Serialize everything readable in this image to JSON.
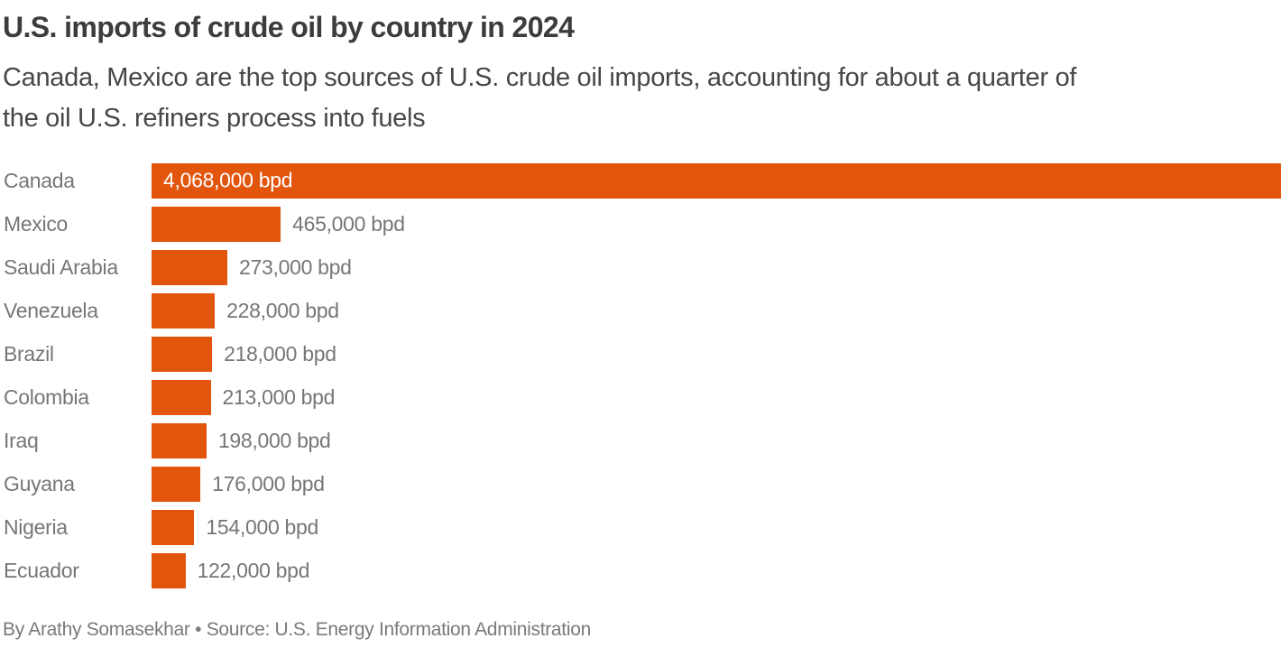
{
  "header": {
    "title": "U.S. imports of crude oil by country in 2024",
    "subtitle_lines": [
      "Canada, Mexico are the top sources of U.S. crude oil imports, accounting for about a quarter of",
      "the oil U.S. refiners process into fuels"
    ]
  },
  "chart_data": {
    "type": "bar",
    "orientation": "horizontal",
    "title": "U.S. imports of crude oil by country in 2024",
    "categories": [
      "Canada",
      "Mexico",
      "Saudi Arabia",
      "Venezuela",
      "Brazil",
      "Colombia",
      "Iraq",
      "Guyana",
      "Nigeria",
      "Ecuador"
    ],
    "values": [
      4068000,
      465000,
      273000,
      228000,
      218000,
      213000,
      198000,
      176000,
      154000,
      122000
    ],
    "value_labels": [
      "4,068,000 bpd",
      "465,000 bpd",
      "273,000 bpd",
      "228,000 bpd",
      "218,000 bpd",
      "213,000 bpd",
      "198,000 bpd",
      "176,000 bpd",
      "154,000 bpd",
      "122,000 bpd"
    ],
    "unit": "bpd",
    "xlim": [
      0,
      4068000
    ],
    "grid": false,
    "legend": false,
    "bar_color": "#e2550d",
    "category_label_color": "#767676",
    "value_label_color": "#767676",
    "inside_label_color": "#ffffff"
  },
  "footer": {
    "byline": "By Arathy Somasekhar • Source: U.S. Energy Information Administration"
  }
}
